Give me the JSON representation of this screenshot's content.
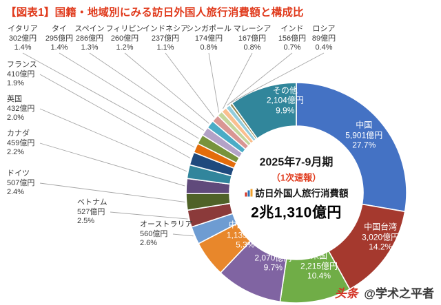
{
  "title": "【図表1】国籍・地域別にみる訪日外国人旅行消費額と構成比",
  "center": {
    "period": "2025年7-9月期",
    "note": "（1次速報）",
    "label": "訪日外国人旅行消費額",
    "total": "2兆1,310億円"
  },
  "watermark": {
    "logo": "头条",
    "handle": "@学术之平者"
  },
  "colors": {
    "title_red": "#e03a1c",
    "note_red": "#e03a1c",
    "watermark_red": "#d43426",
    "label_text": "#3a3a3a",
    "leader_line": "#a6a6a6",
    "inside_label_text": "#ffffff"
  },
  "chart_data": {
    "type": "pie",
    "subtype": "donut",
    "title": "国籍・地域別にみる訪日外国人旅行消費額と構成比",
    "period": "2025年7-9月期（1次速報）",
    "total_label": "訪日外国人旅行消費額",
    "total": "2兆1,310億円",
    "unit": "億円",
    "legend_position": "none",
    "start_angle_deg": 0,
    "direction": "clockwise",
    "segments": [
      {
        "name": "中国",
        "value": 5901,
        "pct": 27.7,
        "color": "#4472C4",
        "label_inside": true
      },
      {
        "name": "中国台湾",
        "value": 3020,
        "pct": 14.2,
        "color": "#A5392E",
        "label_inside": true
      },
      {
        "name": "米国",
        "value": 2215,
        "pct": 10.4,
        "color": "#70AD47",
        "label_inside": true
      },
      {
        "name": "韓国",
        "value": 2070,
        "pct": 9.7,
        "color": "#8064A2",
        "label_inside": true
      },
      {
        "name": "中国香港",
        "value": 1139,
        "pct": 5.3,
        "color": "#E8872B",
        "label_inside": true
      },
      {
        "name": "オーストラリア",
        "value": 560,
        "pct": 2.6,
        "color": "#6E9CD2",
        "label_inside": false
      },
      {
        "name": "ベトナム",
        "value": 527,
        "pct": 2.5,
        "color": "#8B3A3A",
        "label_inside": false
      },
      {
        "name": "ドイツ",
        "value": 507,
        "pct": 2.4,
        "color": "#4F6228",
        "label_inside": false
      },
      {
        "name": "カナダ",
        "value": 459,
        "pct": 2.2,
        "color": "#604A7B",
        "label_inside": false
      },
      {
        "name": "英国",
        "value": 432,
        "pct": 2.0,
        "color": "#31859C",
        "label_inside": false
      },
      {
        "name": "フランス",
        "value": 410,
        "pct": 1.9,
        "color": "#1F497D",
        "label_inside": false
      },
      {
        "name": "イタリア",
        "value": 302,
        "pct": 1.4,
        "color": "#E46C0A",
        "label_inside": false
      },
      {
        "name": "タイ",
        "value": 295,
        "pct": 1.4,
        "color": "#77933C",
        "label_inside": false
      },
      {
        "name": "スペイン",
        "value": 286,
        "pct": 1.3,
        "color": "#B3A2C7",
        "label_inside": false
      },
      {
        "name": "フィリピン",
        "value": 260,
        "pct": 1.2,
        "color": "#4BACC6",
        "label_inside": false
      },
      {
        "name": "インドネシア",
        "value": 237,
        "pct": 1.1,
        "color": "#D99694",
        "label_inside": false
      },
      {
        "name": "シンガポール",
        "value": 174,
        "pct": 0.8,
        "color": "#C3D69B",
        "label_inside": false
      },
      {
        "name": "マレーシア",
        "value": 167,
        "pct": 0.8,
        "color": "#FABF8F",
        "label_inside": false
      },
      {
        "name": "インド",
        "value": 156,
        "pct": 0.7,
        "color": "#92CDDC",
        "label_inside": false
      },
      {
        "name": "ロシア",
        "value": 89,
        "pct": 0.4,
        "color": "#948A54",
        "label_inside": false
      },
      {
        "name": "その他",
        "value": 2104,
        "pct": 9.9,
        "color": "#31869B",
        "label_inside": true
      }
    ]
  }
}
